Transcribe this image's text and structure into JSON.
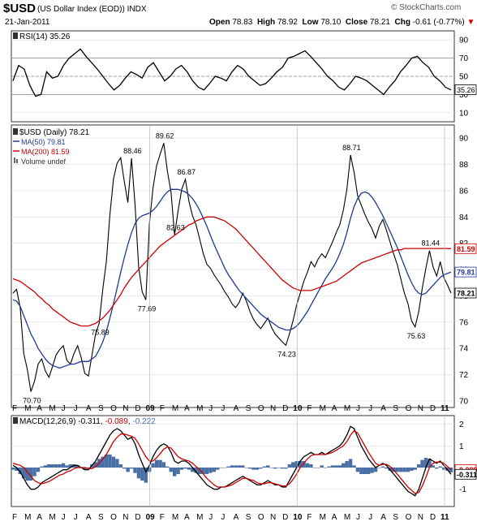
{
  "header": {
    "symbol": "$USD",
    "name": "(US Dollar Index (EOD))",
    "exchange": "INDX",
    "date": "21-Jan-2011",
    "open_label": "Open",
    "open": "78.83",
    "high_label": "High",
    "high": "78.92",
    "low_label": "Low",
    "low": "78.10",
    "close_label": "Close",
    "close": "78.21",
    "chg_label": "Chg",
    "chg": "-0.61 (-0.77%)",
    "logo": "© StockCharts.com"
  },
  "chart_data": [
    {
      "type": "line",
      "panel": "rsi",
      "title": "RSI(14) 35.26",
      "value_label": "35.26",
      "yticks": [
        "90",
        "70",
        "50",
        "30",
        "10"
      ],
      "ytick_values": [
        90,
        70,
        50,
        30,
        10
      ],
      "ylim": [
        0,
        100
      ],
      "series": [
        {
          "values": [
            45,
            62,
            58,
            40,
            28,
            30,
            55,
            48,
            50,
            62,
            70,
            75,
            80,
            72,
            65,
            58,
            50,
            42,
            35,
            40,
            48,
            55,
            52,
            48,
            60,
            65,
            55,
            45,
            50,
            58,
            62,
            55,
            45,
            38,
            35,
            42,
            50,
            48,
            45,
            55,
            62,
            58,
            50,
            45,
            40,
            42,
            48,
            55,
            60,
            70,
            72,
            75,
            78,
            72,
            65,
            58,
            50,
            45,
            38,
            35,
            42,
            50,
            48,
            45,
            40,
            35,
            30,
            38,
            45,
            55,
            62,
            70,
            72,
            65,
            60,
            50,
            45,
            38,
            35
          ]
        }
      ]
    },
    {
      "type": "line",
      "panel": "price",
      "title": "$USD (Daily) 78.21",
      "legend": [
        "$USD (Daily) 78.21",
        "MA(50) 79.81",
        "MA(200) 81.59",
        "Volume undef"
      ],
      "yticks": [
        "90",
        "88",
        "86",
        "84",
        "82",
        "80",
        "78",
        "76",
        "74",
        "72",
        "70"
      ],
      "ytick_values": [
        90,
        88,
        86,
        84,
        82,
        80,
        78,
        76,
        74,
        72,
        70
      ],
      "ylim": [
        69.5,
        91
      ],
      "value_tags": [
        {
          "label": "81.59",
          "value": 81.59,
          "color": "#cc0000"
        },
        {
          "label": "79.81",
          "value": 79.81,
          "color": "#1f3a93"
        },
        {
          "label": "78.21",
          "value": 78.21,
          "color": "#000000"
        }
      ],
      "annotations": [
        {
          "label": "70.70",
          "value": 70.7,
          "i": 5
        },
        {
          "label": "75.89",
          "value": 75.89,
          "i": 24
        },
        {
          "label": "88.46",
          "value": 88.46,
          "i": 33
        },
        {
          "label": "77.69",
          "value": 77.69,
          "i": 37
        },
        {
          "label": "89.62",
          "value": 89.62,
          "i": 42
        },
        {
          "label": "86.87",
          "value": 86.87,
          "i": 48
        },
        {
          "label": "82.63",
          "value": 82.63,
          "i": 45
        },
        {
          "label": "74.23",
          "value": 74.23,
          "i": 76
        },
        {
          "label": "88.71",
          "value": 88.71,
          "i": 94
        },
        {
          "label": "75.63",
          "value": 75.63,
          "i": 112
        },
        {
          "label": "81.44",
          "value": 81.44,
          "i": 116
        }
      ],
      "series": [
        {
          "name": "$USD",
          "color": "#000000",
          "values": [
            78.2,
            78.5,
            77.1,
            73.6,
            72.4,
            70.7,
            71.5,
            72.8,
            73.2,
            72.3,
            71.8,
            72.6,
            73.5,
            73.9,
            74.2,
            73.1,
            72.8,
            73.6,
            74.2,
            73.3,
            72.1,
            71.9,
            73.5,
            75.1,
            75.9,
            78.5,
            80.6,
            84.2,
            86.9,
            88.1,
            88.5,
            86.7,
            85.1,
            88.46,
            84.9,
            80.2,
            78.3,
            77.69,
            83.5,
            86.2,
            87.9,
            88.8,
            89.62,
            87.5,
            85.9,
            82.63,
            84.5,
            86.1,
            86.87,
            85.2,
            84.1,
            83.4,
            82.3,
            81.2,
            80.4,
            80.1,
            79.6,
            79.2,
            78.8,
            78.3,
            77.9,
            77.4,
            77.1,
            77.5,
            78.2,
            77.6,
            76.8,
            76.2,
            75.8,
            75.5,
            75.9,
            76.3,
            75.6,
            75.1,
            74.8,
            74.5,
            74.23,
            75.1,
            76.1,
            77.3,
            78.2,
            79.1,
            79.8,
            80.6,
            80.2,
            80.8,
            81.2,
            80.9,
            81.5,
            82.1,
            82.8,
            83.4,
            84.5,
            86.1,
            88.71,
            87.4,
            85.6,
            84.9,
            84.2,
            83.6,
            83.1,
            82.4,
            83.3,
            83.8,
            83.0,
            82.1,
            81.2,
            80.4,
            79.3,
            78.2,
            77.4,
            76.1,
            75.63,
            76.8,
            78.6,
            80.1,
            81.44,
            80.2,
            79.5,
            80.6,
            79.4,
            78.83,
            78.21
          ]
        },
        {
          "name": "MA(50)",
          "color": "#1f3a93",
          "values": [
            77.7,
            77.6,
            77.2,
            76.5,
            75.8,
            75.1,
            74.6,
            74.0,
            73.6,
            73.2,
            72.9,
            72.7,
            72.6,
            72.5,
            72.6,
            72.7,
            72.8,
            72.8,
            72.9,
            73.0,
            73.0,
            73.0,
            73.2,
            73.4,
            73.9,
            74.5,
            75.3,
            76.3,
            77.4,
            78.6,
            79.8,
            80.9,
            81.9,
            82.8,
            83.5,
            83.9,
            84.1,
            84.2,
            84.3,
            84.5,
            84.8,
            85.2,
            85.6,
            85.9,
            86.1,
            86.1,
            86.1,
            86.0,
            85.9,
            85.7,
            85.4,
            85.0,
            84.5,
            83.9,
            83.3,
            82.6,
            81.9,
            81.3,
            80.7,
            80.1,
            79.6,
            79.2,
            78.8,
            78.4,
            78.1,
            77.8,
            77.5,
            77.2,
            76.9,
            76.6,
            76.4,
            76.2,
            76.0,
            75.8,
            75.6,
            75.5,
            75.4,
            75.4,
            75.5,
            75.7,
            76.0,
            76.4,
            76.8,
            77.3,
            77.8,
            78.3,
            78.8,
            79.3,
            79.7,
            80.1,
            80.6,
            81.2,
            81.9,
            82.8,
            83.9,
            84.8,
            85.4,
            85.8,
            85.9,
            85.8,
            85.5,
            85.1,
            84.6,
            84.1,
            83.5,
            82.9,
            82.3,
            81.7,
            81.0,
            80.3,
            79.6,
            79.0,
            78.5,
            78.2,
            78.1,
            78.2,
            78.5,
            78.8,
            79.1,
            79.4,
            79.6,
            79.7,
            79.81
          ]
        },
        {
          "name": "MA(200)",
          "color": "#cc0000",
          "values": [
            79.3,
            79.2,
            79.1,
            78.9,
            78.7,
            78.5,
            78.3,
            78.0,
            77.8,
            77.5,
            77.3,
            77.0,
            76.8,
            76.6,
            76.4,
            76.2,
            76.0,
            75.9,
            75.8,
            75.7,
            75.7,
            75.7,
            75.8,
            75.9,
            76.1,
            76.3,
            76.6,
            76.9,
            77.3,
            77.7,
            78.1,
            78.6,
            79.0,
            79.4,
            79.7,
            80.0,
            80.3,
            80.6,
            80.9,
            81.2,
            81.5,
            81.8,
            82.0,
            82.2,
            82.4,
            82.6,
            82.8,
            83.0,
            83.2,
            83.4,
            83.5,
            83.7,
            83.8,
            83.9,
            84.0,
            84.0,
            84.0,
            83.9,
            83.8,
            83.7,
            83.5,
            83.3,
            83.1,
            82.8,
            82.5,
            82.2,
            81.9,
            81.6,
            81.3,
            81.0,
            80.7,
            80.4,
            80.1,
            79.8,
            79.5,
            79.2,
            79.0,
            78.8,
            78.6,
            78.5,
            78.4,
            78.4,
            78.4,
            78.4,
            78.5,
            78.6,
            78.7,
            78.8,
            78.9,
            79.0,
            79.1,
            79.3,
            79.5,
            79.7,
            79.9,
            80.1,
            80.3,
            80.5,
            80.6,
            80.7,
            80.8,
            80.9,
            81.0,
            81.1,
            81.2,
            81.3,
            81.4,
            81.5,
            81.5,
            81.6,
            81.6,
            81.6,
            81.6,
            81.6,
            81.6,
            81.6,
            81.6,
            81.6,
            81.6,
            81.6,
            81.6,
            81.6,
            81.59
          ]
        }
      ]
    },
    {
      "type": "line",
      "panel": "macd",
      "title": "MACD(12,26,9) -0.311, -0.089, -0.222",
      "title_parts": [
        "MACD(12,26,9)",
        "-0.311",
        "-0.089",
        "-0.222"
      ],
      "yticks": [
        "2",
        "1",
        "0",
        "-1"
      ],
      "ytick_values": [
        2,
        1,
        0,
        -1
      ],
      "ylim": [
        -1.8,
        2.4
      ],
      "value_tags": [
        {
          "label": "-0.089",
          "value": -0.089,
          "color": "#cc0000"
        },
        {
          "label": "-0.311",
          "value": -0.311,
          "color": "#000000"
        }
      ],
      "series": [
        {
          "name": "MACD",
          "color": "#000000",
          "values": [
            0.1,
            0.0,
            -0.2,
            -0.5,
            -0.8,
            -1.0,
            -1.0,
            -0.9,
            -0.7,
            -0.6,
            -0.5,
            -0.4,
            -0.3,
            -0.2,
            -0.1,
            -0.1,
            0.0,
            0.1,
            0.1,
            0.0,
            -0.1,
            -0.1,
            0.1,
            0.3,
            0.6,
            0.9,
            1.2,
            1.5,
            1.7,
            1.8,
            1.7,
            1.5,
            1.3,
            1.4,
            1.1,
            0.6,
            0.2,
            -0.2,
            0.1,
            0.5,
            0.8,
            1.0,
            1.1,
            1.0,
            0.7,
            0.3,
            0.2,
            0.3,
            0.3,
            0.2,
            0.0,
            -0.2,
            -0.4,
            -0.6,
            -0.8,
            -0.9,
            -1.0,
            -1.0,
            -0.9,
            -0.9,
            -0.8,
            -0.7,
            -0.6,
            -0.5,
            -0.4,
            -0.5,
            -0.6,
            -0.7,
            -0.8,
            -0.8,
            -0.7,
            -0.6,
            -0.7,
            -0.8,
            -0.8,
            -0.9,
            -0.9,
            -0.6,
            -0.3,
            0.0,
            0.3,
            0.5,
            0.6,
            0.7,
            0.6,
            0.6,
            0.7,
            0.6,
            0.7,
            0.8,
            0.9,
            1.0,
            1.2,
            1.5,
            1.9,
            1.8,
            1.4,
            1.0,
            0.7,
            0.4,
            0.2,
            0.0,
            0.1,
            0.2,
            0.1,
            -0.1,
            -0.3,
            -0.5,
            -0.7,
            -0.9,
            -1.1,
            -1.2,
            -1.3,
            -1.0,
            -0.5,
            0.0,
            0.4,
            0.3,
            0.2,
            0.3,
            0.1,
            -0.1,
            -0.311
          ]
        },
        {
          "name": "Signal",
          "color": "#cc0000",
          "values": [
            0.2,
            0.15,
            0.1,
            0.0,
            -0.2,
            -0.4,
            -0.6,
            -0.7,
            -0.75,
            -0.7,
            -0.65,
            -0.55,
            -0.45,
            -0.35,
            -0.3,
            -0.2,
            -0.15,
            -0.05,
            0.0,
            0.0,
            0.0,
            -0.05,
            -0.05,
            0.05,
            0.2,
            0.4,
            0.6,
            0.9,
            1.2,
            1.4,
            1.55,
            1.55,
            1.5,
            1.45,
            1.35,
            1.1,
            0.8,
            0.5,
            0.3,
            0.3,
            0.45,
            0.65,
            0.85,
            0.95,
            0.9,
            0.7,
            0.5,
            0.4,
            0.35,
            0.3,
            0.2,
            0.05,
            -0.1,
            -0.3,
            -0.5,
            -0.65,
            -0.8,
            -0.9,
            -0.9,
            -0.9,
            -0.85,
            -0.8,
            -0.7,
            -0.6,
            -0.5,
            -0.5,
            -0.55,
            -0.6,
            -0.7,
            -0.75,
            -0.75,
            -0.7,
            -0.7,
            -0.75,
            -0.8,
            -0.85,
            -0.85,
            -0.75,
            -0.55,
            -0.3,
            0.0,
            0.2,
            0.4,
            0.55,
            0.6,
            0.6,
            0.6,
            0.6,
            0.65,
            0.7,
            0.8,
            0.9,
            1.0,
            1.2,
            1.5,
            1.7,
            1.6,
            1.3,
            1.0,
            0.7,
            0.45,
            0.2,
            0.1,
            0.15,
            0.15,
            0.05,
            -0.1,
            -0.3,
            -0.5,
            -0.7,
            -0.9,
            -1.05,
            -1.2,
            -1.15,
            -0.85,
            -0.45,
            0.0,
            0.2,
            0.25,
            0.25,
            0.2,
            0.05,
            -0.089
          ]
        },
        {
          "name": "Histogram",
          "color": "#4a6fa5",
          "values": [
            -0.1,
            -0.15,
            -0.3,
            -0.5,
            -0.6,
            -0.6,
            -0.4,
            -0.2,
            0.05,
            0.1,
            0.15,
            0.15,
            0.15,
            0.15,
            0.2,
            0.1,
            0.15,
            0.15,
            0.1,
            0.0,
            -0.1,
            -0.05,
            0.15,
            0.25,
            0.4,
            0.5,
            0.6,
            0.6,
            0.5,
            0.4,
            0.15,
            -0.05,
            -0.2,
            -0.05,
            -0.25,
            -0.5,
            -0.6,
            -0.7,
            -0.2,
            0.2,
            0.35,
            0.35,
            0.25,
            0.05,
            -0.2,
            -0.4,
            -0.3,
            -0.1,
            -0.05,
            -0.1,
            -0.2,
            -0.25,
            -0.3,
            -0.3,
            -0.3,
            -0.25,
            -0.2,
            -0.1,
            0.0,
            0.0,
            0.05,
            0.1,
            0.1,
            0.1,
            0.1,
            0.0,
            -0.05,
            -0.1,
            -0.1,
            -0.05,
            0.05,
            0.1,
            0.0,
            -0.05,
            0.0,
            -0.05,
            -0.05,
            0.15,
            0.25,
            0.3,
            0.3,
            0.3,
            0.2,
            0.15,
            0.0,
            0.0,
            0.1,
            0.0,
            0.05,
            0.1,
            0.1,
            0.1,
            0.2,
            0.3,
            0.4,
            0.1,
            -0.2,
            -0.3,
            -0.3,
            -0.3,
            -0.25,
            -0.2,
            0.0,
            0.05,
            -0.05,
            -0.15,
            -0.2,
            -0.2,
            -0.2,
            -0.2,
            -0.2,
            -0.15,
            -0.1,
            0.15,
            0.35,
            0.45,
            0.4,
            0.1,
            -0.05,
            0.05,
            -0.1,
            -0.15,
            -0.222
          ]
        }
      ]
    }
  ],
  "x_axis": {
    "labels": [
      "F",
      "M",
      "A",
      "M",
      "J",
      "J",
      "A",
      "S",
      "O",
      "N",
      "D",
      "09",
      "F",
      "M",
      "A",
      "M",
      "J",
      "J",
      "A",
      "S",
      "O",
      "N",
      "D",
      "10",
      "F",
      "M",
      "A",
      "M",
      "J",
      "J",
      "A",
      "S",
      "O",
      "N",
      "D",
      "11"
    ],
    "bold_labels": [
      "09",
      "10",
      "11"
    ]
  }
}
